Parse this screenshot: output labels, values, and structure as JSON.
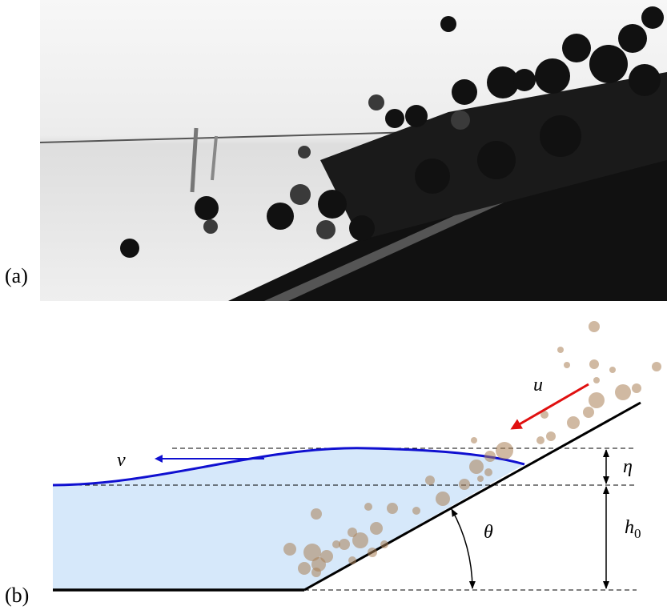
{
  "panels": [
    {
      "label": "(a)"
    },
    {
      "label": "(b)"
    }
  ],
  "symbols": {
    "u": "u",
    "v": "v",
    "eta": "η",
    "theta": "θ",
    "h0": {
      "symbol": "h",
      "subscript": "0"
    }
  }
}
